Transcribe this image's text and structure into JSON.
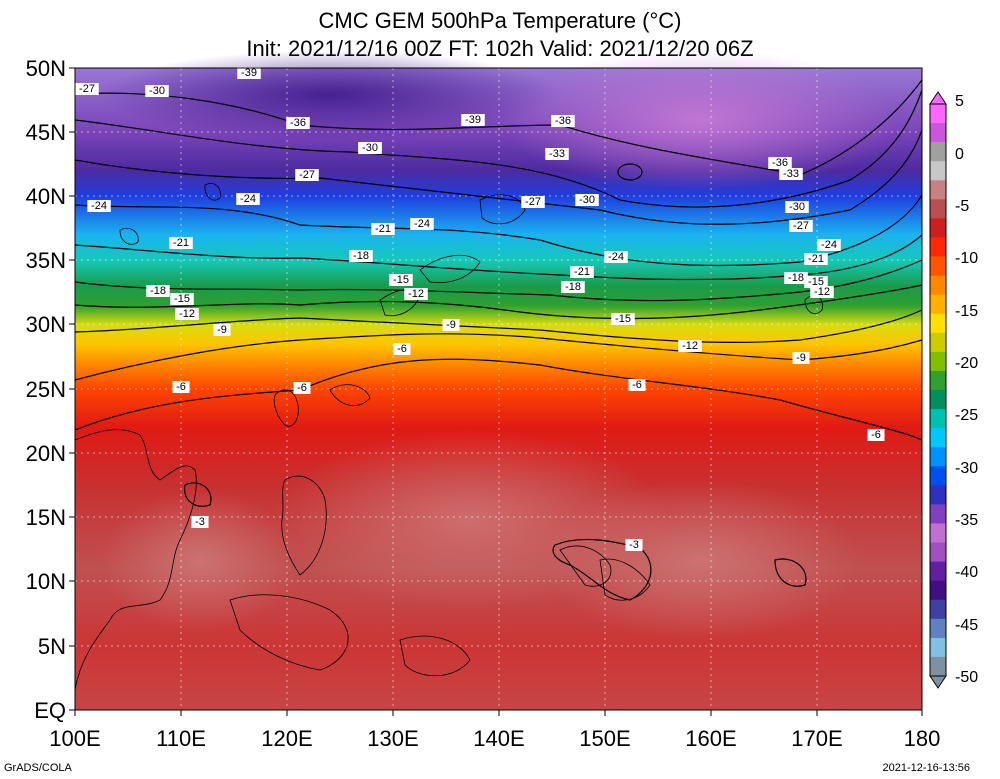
{
  "title": {
    "line1": "CMC GEM 500hPa Temperature (°C)",
    "line2": "Init: 2021/12/16 00Z  FT: 102h  Valid: 2021/12/20 06Z"
  },
  "lat_labels": [
    "50N",
    "45N",
    "40N",
    "35N",
    "30N",
    "25N",
    "20N",
    "15N",
    "10N",
    "5N",
    "EQ"
  ],
  "lon_labels": [
    "100E",
    "110E",
    "120E",
    "130E",
    "140E",
    "150E",
    "160E",
    "170E",
    "180"
  ],
  "colorbar": {
    "labels": [
      "5",
      "0",
      "-5",
      "-10",
      "-15",
      "-20",
      "-25",
      "-30",
      "-35",
      "-40",
      "-45",
      "-50"
    ],
    "colors": [
      "#ff66ff",
      "#cc55dd",
      "#a0a0a0",
      "#c7c7c7",
      "#c98080",
      "#b85050",
      "#cc2020",
      "#ff2800",
      "#ff5500",
      "#ff8800",
      "#ffb000",
      "#ffe000",
      "#cccc00",
      "#80c000",
      "#30a030",
      "#009060",
      "#00c0b0",
      "#00c8ff",
      "#0090ff",
      "#0050f0",
      "#3030c0",
      "#8040c0",
      "#c070d0",
      "#a050c0",
      "#6020a0",
      "#401080",
      "#4040a0",
      "#6080c0",
      "#80c0e0",
      "#8090a0"
    ]
  },
  "contour_labels": [
    "-39",
    "-39",
    "-36",
    "-36",
    "-36",
    "-33",
    "-33",
    "-30",
    "-30",
    "-30",
    "-30",
    "-30",
    "-27",
    "-27",
    "-27",
    "-27",
    "-24",
    "-24",
    "-24",
    "-24",
    "-24",
    "-21",
    "-21",
    "-21",
    "-21",
    "-18",
    "-18",
    "-18",
    "-18",
    "-15",
    "-15",
    "-15",
    "-15",
    "-12",
    "-12",
    "-12",
    "-12",
    "-9",
    "-9",
    "-9",
    "-6",
    "-6",
    "-6",
    "-6",
    "-6",
    "-3",
    "-3"
  ],
  "footer": {
    "left": "GrADS/COLA",
    "right": "2021-12-16-13:56"
  }
}
